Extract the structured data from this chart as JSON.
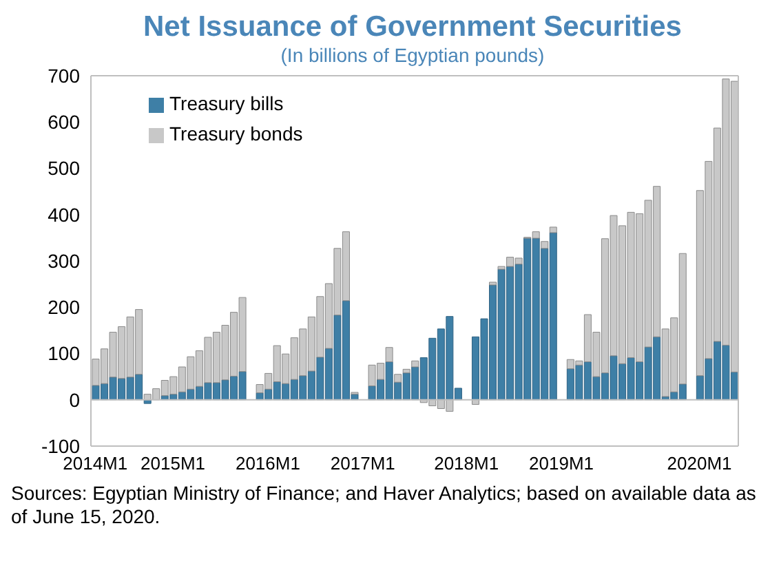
{
  "chart_data": {
    "type": "bar",
    "stacked": true,
    "title": "Net Issuance of Government Securities",
    "subtitle": "(In billions of Egyptian pounds)",
    "categories": [
      "2014M1",
      null,
      null,
      null,
      null,
      null,
      null,
      null,
      null,
      "2015M1",
      null,
      null,
      null,
      null,
      null,
      null,
      null,
      null,
      null,
      null,
      "2016M1",
      null,
      null,
      null,
      null,
      null,
      null,
      null,
      null,
      null,
      null,
      "2017M1",
      null,
      null,
      null,
      null,
      null,
      null,
      null,
      null,
      null,
      null,
      null,
      "2018M1",
      null,
      null,
      null,
      null,
      null,
      null,
      null,
      null,
      null,
      null,
      "2019M1",
      null,
      null,
      null,
      null,
      null,
      null,
      null,
      null,
      null,
      null,
      null,
      null,
      null,
      null,
      null,
      "2020M1",
      null,
      null,
      null,
      null
    ],
    "series": [
      {
        "name": "Treasury bills",
        "color": "#3e7fa6",
        "values": [
          31,
          35,
          49,
          46,
          49,
          55,
          -8,
          null,
          9,
          12,
          17,
          23,
          29,
          37,
          37,
          43,
          51,
          61,
          null,
          15,
          23,
          39,
          35,
          44,
          52,
          62,
          92,
          111,
          183,
          214,
          12,
          null,
          30,
          44,
          82,
          38,
          58,
          71,
          91,
          133,
          153,
          180,
          25,
          null,
          136,
          175,
          248,
          282,
          288,
          293,
          349,
          349,
          327,
          361,
          null,
          67,
          75,
          82,
          50,
          58,
          95,
          78,
          91,
          82,
          114,
          136,
          7,
          17,
          34,
          null,
          52,
          89,
          126,
          118,
          60
        ]
      },
      {
        "name": "Treasury bonds",
        "color": "#c8c8c8",
        "values": [
          57,
          75,
          97,
          112,
          130,
          140,
          12,
          24,
          33,
          38,
          54,
          70,
          77,
          98,
          109,
          118,
          138,
          160,
          null,
          18,
          34,
          78,
          64,
          90,
          101,
          117,
          131,
          140,
          144,
          149,
          4,
          null,
          45,
          35,
          31,
          17,
          8,
          13,
          -6,
          -13,
          -19,
          -25,
          0,
          null,
          -10,
          0,
          6,
          6,
          20,
          13,
          2,
          14,
          15,
          12,
          null,
          20,
          9,
          102,
          96,
          290,
          303,
          298,
          314,
          320,
          317,
          325,
          146,
          160,
          282,
          null,
          400,
          426,
          461,
          575,
          628
        ]
      }
    ],
    "ylim": [
      -100,
      700
    ],
    "yticks": [
      -100,
      0,
      100,
      200,
      300,
      400,
      500,
      600,
      700
    ],
    "ref_lines": [
      {
        "axis": "y",
        "value": 0,
        "color": "#bfbfbf"
      }
    ],
    "legend": "top left",
    "annotations": [
      "Sources: Egyptian Ministry of Finance; and Haver Analytics; based on available data as of June 15, 2020."
    ]
  }
}
